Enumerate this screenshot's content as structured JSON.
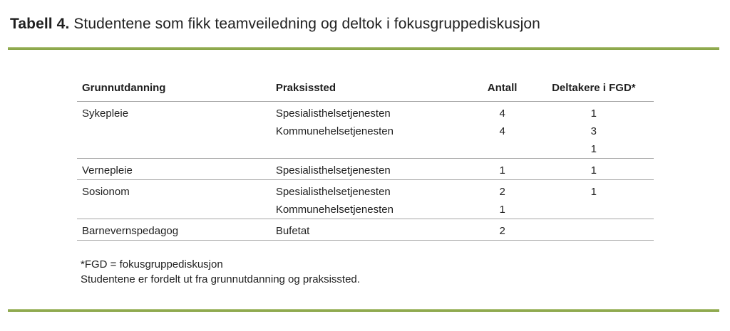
{
  "title": {
    "label": "Tabell 4.",
    "text": " Studentene som fikk teamveiledning og deltok i fokusgruppediskusjon"
  },
  "colors": {
    "accent_green": "#8faa4d",
    "separator_gray": "#a6a6a6",
    "text": "#1f1f1f"
  },
  "chart_data": {
    "type": "table",
    "title": "Tabell 4. Studentene som fikk teamveiledning og deltok i fokusgruppediskusjon",
    "columns": [
      "Grunnutdanning",
      "Praksissted",
      "Antall",
      "Deltakere i FGD*"
    ],
    "groups": [
      {
        "rows": [
          [
            "Sykepleie",
            "Spesialisthelsetjenesten",
            "4",
            "1"
          ],
          [
            "",
            "Kommunehelsetjenesten",
            "4",
            "3"
          ],
          [
            "",
            "",
            "",
            "1"
          ]
        ]
      },
      {
        "rows": [
          [
            "Vernepleie",
            "Spesialisthelsetjenesten",
            "1",
            "1"
          ]
        ]
      },
      {
        "rows": [
          [
            "Sosionom",
            "Spesialisthelsetjenesten",
            "2",
            "1"
          ],
          [
            "",
            "Kommunehelsetjenesten",
            "1",
            ""
          ]
        ]
      },
      {
        "rows": [
          [
            "Barnevernspedagog",
            "Bufetat",
            "2",
            ""
          ]
        ]
      }
    ],
    "footnotes": [
      "*FGD = fokusgruppediskusjon",
      "Studentene er fordelt ut fra grunnutdanning og praksissted."
    ]
  }
}
